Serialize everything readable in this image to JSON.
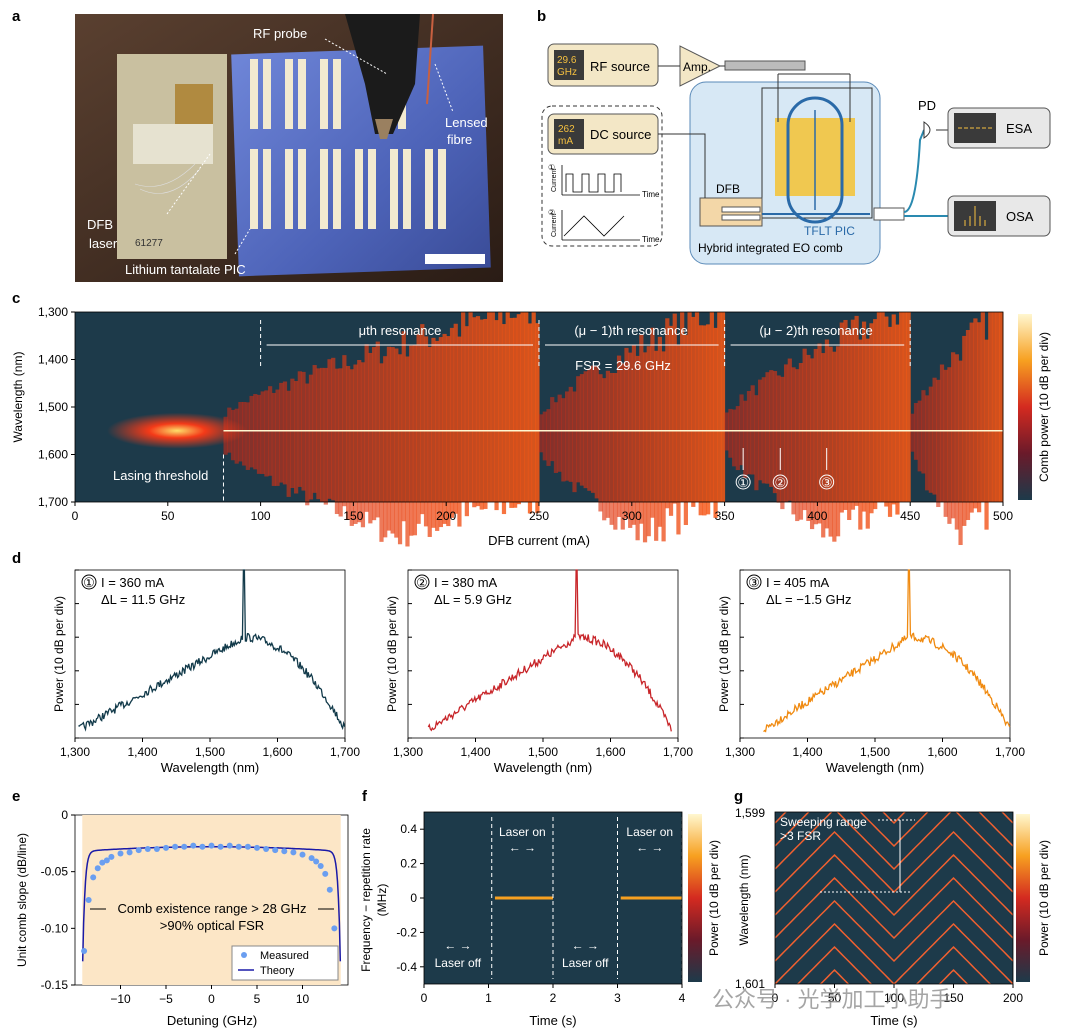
{
  "panels": {
    "a": "a",
    "b": "b",
    "c": "c",
    "d": "d",
    "e": "e",
    "f": "f",
    "g": "g"
  },
  "photo": {
    "rf_probe": "RF probe",
    "lensed_fibre_1": "Lensed",
    "lensed_fibre_2": "fibre",
    "dfb_1": "DFB",
    "dfb_2": "laser",
    "pic": "Lithium tantalate PIC",
    "chip_mark": "61277"
  },
  "schematic": {
    "rf_value_1": "29.6",
    "rf_value_2": "GHz",
    "rf_source": "RF source",
    "amp": "Amp.",
    "dc_value_1": "262",
    "dc_value_2": "mA",
    "dc_source": "DC source",
    "mode1": "①",
    "mode2": "②",
    "current": "Current",
    "time": "Time",
    "dfb": "DFB",
    "tflt": "TFLT PIC",
    "hybrid": "Hybrid integrated EO comb",
    "pd": "PD",
    "esa": "ESA",
    "osa": "OSA"
  },
  "panel_c": {
    "ylabel": "Wavelength (nm)",
    "xlabel": "DFB current (mA)",
    "yticks": [
      "1,300",
      "1,400",
      "1,500",
      "1,600",
      "1,700"
    ],
    "xticks": [
      "0",
      "50",
      "100",
      "150",
      "200",
      "250",
      "300",
      "350",
      "400",
      "450",
      "500"
    ],
    "res1": "μth resonance",
    "res2": "(μ − 1)th resonance",
    "res3": "(μ − 2)th resonance",
    "fsr": "FSR = 29.6 GHz",
    "threshold": "Lasing threshold",
    "markers": [
      "①",
      "②",
      "③"
    ],
    "cbar": "Comb power (10 dB per div)"
  },
  "panel_d": [
    {
      "marker": "①",
      "current": "I = 360 mA",
      "detuning": "ΔL = 11.5 GHz",
      "color": "#123a4a"
    },
    {
      "marker": "②",
      "current": "I = 380 mA",
      "detuning": "ΔL = 5.9 GHz",
      "color": "#c8262a"
    },
    {
      "marker": "③",
      "current": "I = 405 mA",
      "detuning": "ΔL = −1.5 GHz",
      "color": "#f08a10"
    }
  ],
  "panel_d_axes": {
    "ylabel": "Power (10 dB per div)",
    "xlabel": "Wavelength (nm)",
    "xticks": [
      "1,300",
      "1,400",
      "1,500",
      "1,600",
      "1,700"
    ]
  },
  "panel_e": {
    "ylabel": "Unit comb slope (dB/line)",
    "xlabel": "Detuning (GHz)",
    "yticks": [
      "0",
      "-0.05",
      "-0.10",
      "-0.15"
    ],
    "xticks": [
      "−10",
      "−5",
      "0",
      "5",
      "10"
    ],
    "note1": "Comb existence range > 28 GHz",
    "note2": ">90% optical FSR",
    "legend_measured": "Measured",
    "legend_theory": "Theory"
  },
  "panel_f": {
    "ylabel_1": "Frequency − repetition rate",
    "ylabel_2": "(MHz)",
    "xlabel": "Time (s)",
    "yticks": [
      "0.4",
      "0.2",
      "0",
      "-0.2",
      "-0.4"
    ],
    "xticks": [
      "0",
      "1",
      "2",
      "3",
      "4"
    ],
    "laser_on": "Laser on",
    "laser_off": "Laser off",
    "cbar": "Power (10 dB per div)"
  },
  "panel_g": {
    "ylabel": "Wavelength (nm)",
    "xlabel": "Time (s)",
    "ytop": "1,599",
    "ybottom": "1,601",
    "xticks": [
      "0",
      "50",
      "100",
      "150",
      "200"
    ],
    "sweep1": "Sweeping range",
    "sweep2": ">3 FSR",
    "cbar": "Power (10 dB per div)"
  },
  "watermark": "公众号 · 光学加工小助手",
  "chart_data": [
    {
      "type": "heatmap",
      "xlabel": "DFB current (mA)",
      "ylabel": "Wavelength (nm)",
      "xlim": [
        0,
        500
      ],
      "ylim": [
        1700,
        1300
      ],
      "resonance_boundaries_mA": [
        100,
        250,
        350,
        450
      ],
      "lasing_threshold_mA": 80,
      "center_wavelength_nm": 1550,
      "marked_currents_mA": [
        360,
        380,
        405
      ],
      "colorbar": "Comb power (10 dB per div)"
    },
    {
      "type": "line",
      "xlabel": "Wavelength (nm)",
      "ylabel": "Power (10 dB per div)",
      "xlim": [
        1300,
        1700
      ],
      "series": [
        {
          "name": "I = 360 mA",
          "peak_nm": 1550
        },
        {
          "name": "I = 380 mA",
          "peak_nm": 1550
        },
        {
          "name": "I = 405 mA",
          "peak_nm": 1550
        }
      ]
    },
    {
      "type": "scatter",
      "xlabel": "Detuning (GHz)",
      "ylabel": "Unit comb slope (dB/line)",
      "xlim": [
        -15,
        15
      ],
      "ylim": [
        -0.15,
        0
      ],
      "measured_x": [
        -14,
        -13.5,
        -13,
        -12.5,
        -12,
        -11.5,
        -11,
        -10,
        -9,
        -8,
        -7,
        -6,
        -5,
        -4,
        -3,
        -2,
        -1,
        0,
        1,
        2,
        3,
        4,
        5,
        6,
        7,
        8,
        9,
        10,
        11,
        11.5,
        12,
        12.5,
        13,
        13.5
      ],
      "measured_y": [
        -0.12,
        -0.075,
        -0.055,
        -0.047,
        -0.042,
        -0.04,
        -0.037,
        -0.034,
        -0.033,
        -0.031,
        -0.03,
        -0.03,
        -0.029,
        -0.028,
        -0.028,
        -0.027,
        -0.028,
        -0.027,
        -0.028,
        -0.027,
        -0.028,
        -0.028,
        -0.029,
        -0.03,
        -0.031,
        -0.032,
        -0.033,
        -0.035,
        -0.038,
        -0.041,
        -0.045,
        -0.052,
        -0.066,
        -0.1
      ],
      "theory_range": [
        -14.2,
        14.2
      ]
    },
    {
      "type": "heatmap",
      "xlabel": "Time (s)",
      "ylabel": "Frequency − repetition rate (MHz)",
      "xlim": [
        0,
        4
      ],
      "ylim": [
        -0.5,
        0.5
      ],
      "laser_on_intervals_s": [
        [
          1.1,
          2.0
        ],
        [
          3.05,
          4.0
        ]
      ],
      "line_freq_MHz": 0
    },
    {
      "type": "heatmap",
      "xlabel": "Time (s)",
      "ylabel": "Wavelength (nm)",
      "xlim": [
        0,
        200
      ],
      "ylim": [
        1599,
        1601
      ],
      "sweep_period_s": 100,
      "note": "Sweeping range >3 FSR"
    }
  ]
}
